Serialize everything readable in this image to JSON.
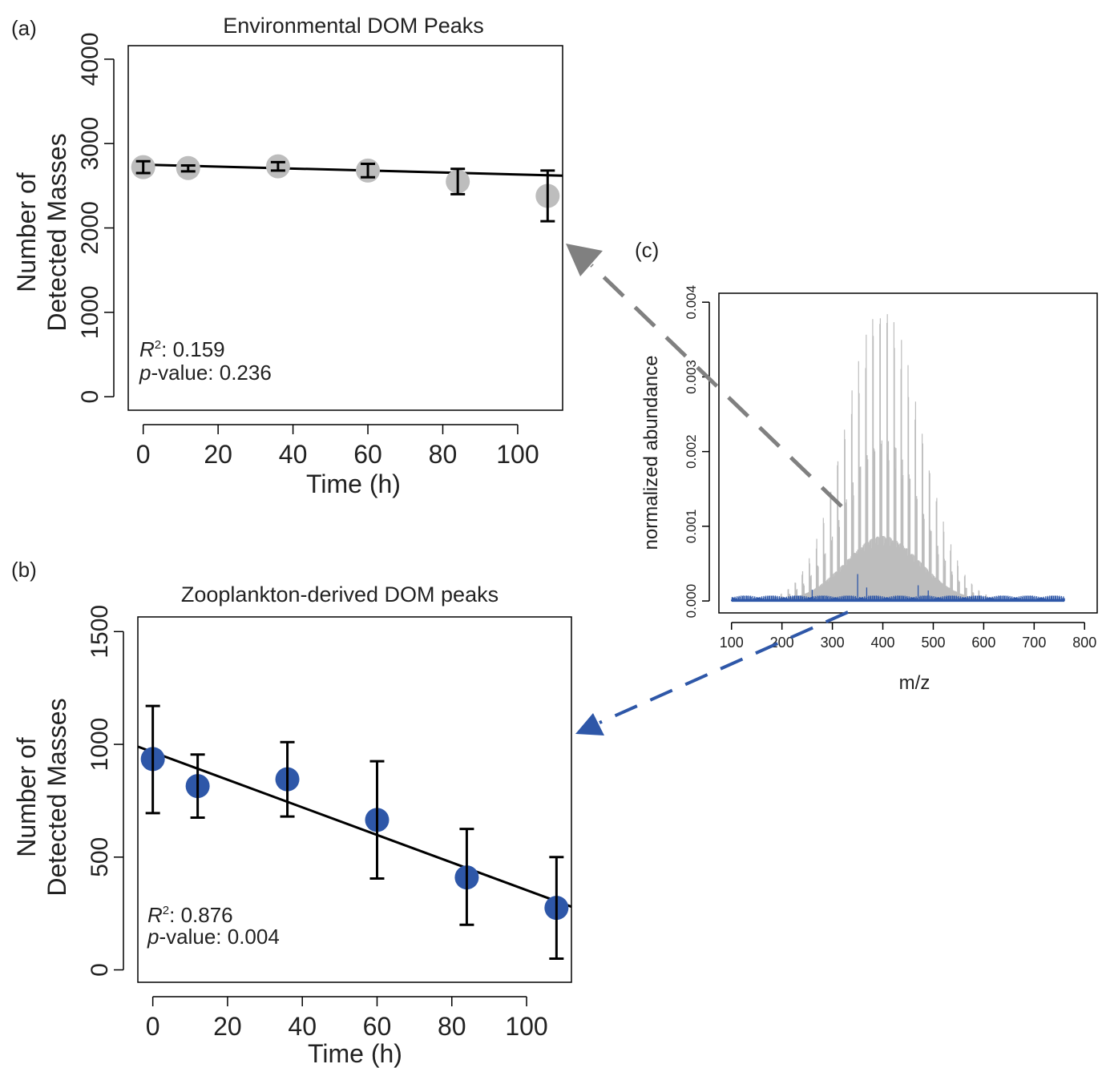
{
  "chart_data": [
    {
      "panel_label": "(a)",
      "type": "scatter",
      "title": "Environmental DOM Peaks",
      "xlabel": "Time (h)",
      "ylabel": [
        "Number of",
        "Detected Masses"
      ],
      "xlim": [
        -4,
        112
      ],
      "ylim": [
        -160,
        4160
      ],
      "x_ticks": [
        0,
        20,
        40,
        60,
        80,
        100
      ],
      "y_ticks": [
        0,
        1000,
        2000,
        3000,
        4000
      ],
      "points": [
        {
          "x": 0,
          "y": 2720,
          "err_low": 2650,
          "err_high": 2790
        },
        {
          "x": 12,
          "y": 2710,
          "err_low": 2670,
          "err_high": 2740
        },
        {
          "x": 36,
          "y": 2730,
          "err_low": 2680,
          "err_high": 2780
        },
        {
          "x": 60,
          "y": 2680,
          "err_low": 2600,
          "err_high": 2760
        },
        {
          "x": 84,
          "y": 2550,
          "err_low": 2400,
          "err_high": 2700
        },
        {
          "x": 108,
          "y": 2380,
          "err_low": 2080,
          "err_high": 2680
        }
      ],
      "regression": {
        "x": [
          0,
          112
        ],
        "y": [
          2750,
          2620
        ]
      },
      "stats": {
        "r2_label": "R",
        "r2_sup": "2",
        "r2_value": ":  0.159",
        "p_label": "p",
        "p_value": "-value: 0.236"
      },
      "point_color": "#bdbdbd",
      "grid": false
    },
    {
      "panel_label": "(b)",
      "type": "scatter",
      "title": "Zooplankton-derived DOM peaks",
      "xlabel": "Time (h)",
      "ylabel": [
        "Number of",
        "Detected Masses"
      ],
      "xlim": [
        -4,
        112
      ],
      "ylim": [
        -55,
        1565
      ],
      "x_ticks": [
        0,
        20,
        40,
        60,
        80,
        100
      ],
      "y_ticks": [
        0,
        500,
        1000,
        1500
      ],
      "points": [
        {
          "x": 0,
          "y": 935,
          "err_low": 695,
          "err_high": 1170
        },
        {
          "x": 12,
          "y": 815,
          "err_low": 675,
          "err_high": 955
        },
        {
          "x": 36,
          "y": 845,
          "err_low": 680,
          "err_high": 1010
        },
        {
          "x": 60,
          "y": 665,
          "err_low": 405,
          "err_high": 925
        },
        {
          "x": 84,
          "y": 410,
          "err_low": 200,
          "err_high": 625
        },
        {
          "x": 108,
          "y": 275,
          "err_low": 50,
          "err_high": 500
        }
      ],
      "regression": {
        "x": [
          -4,
          112
        ],
        "y": [
          990,
          280
        ]
      },
      "stats": {
        "r2_label": "R",
        "r2_sup": "2",
        "r2_value": ":  0.876",
        "p_label": "p",
        "p_value": "-value: 0.004"
      },
      "point_color": "#2e57a8",
      "grid": false
    },
    {
      "panel_label": "(c)",
      "type": "line",
      "title": "",
      "xlabel": "m/z",
      "ylabel": "normalized abundance",
      "xlim": [
        75,
        825
      ],
      "ylim": [
        -0.00016,
        0.00412
      ],
      "x_ticks": [
        100,
        200,
        300,
        400,
        500,
        600,
        700,
        800
      ],
      "y_ticks": [
        0.0,
        0.001,
        0.002,
        0.003,
        0.004
      ],
      "y_tick_labels": [
        "0.000",
        "0.001",
        "0.002",
        "0.003",
        "0.004"
      ],
      "series": [
        {
          "mz_range": [
            100,
            760
          ],
          "envelope_center": 400,
          "envelope_peak": 0.00396,
          "color": "#bdbdbd"
        },
        {
          "mz_range": [
            100,
            760
          ],
          "typical_max": 8e-05,
          "spikes": [
            {
              "x": 260,
              "y": 0.00015
            },
            {
              "x": 350,
              "y": 0.00036
            },
            {
              "x": 368,
              "y": 0.00018
            },
            {
              "x": 470,
              "y": 0.00021
            },
            {
              "x": 490,
              "y": 0.00014
            }
          ],
          "color": "#2e57a8"
        }
      ],
      "grid": false
    }
  ],
  "arrows": [
    {
      "color": "#808080",
      "from_panel": "(c)",
      "to_panel": "(a)"
    },
    {
      "color": "#2e57a8",
      "from_panel": "(c)",
      "to_panel": "(b)"
    }
  ]
}
